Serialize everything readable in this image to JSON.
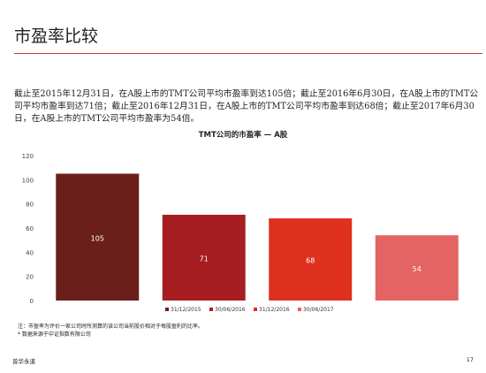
{
  "slide": {
    "title": "市盈率比较",
    "body": "截止至2015年12月31日，在A股上市的TMT公司平均市盈率到达105倍；截止至2016年6月30日，在A股上市的TMT公司平均市盈率到达71倍；截止至2016年12月31日，在A股上市的TMT公司平均市盈率到达68倍；截止至2017年6月30日，在A股上市的TMT公司平均市盈率为54倍。",
    "notes": [
      "注：市盈率为评价一家公司时所测算的该公司当前股价相对于每股盈利的比率。",
      "* 数据来源于中证指数有限公司"
    ],
    "footer_left": "普华永道",
    "page_number": "17"
  },
  "chart_data": {
    "type": "bar",
    "title": "TMT公司的市盈率 — A股",
    "categories": [
      "31/12/2015",
      "30/06/2016",
      "31/12/2016",
      "30/06/2017"
    ],
    "values": [
      105,
      71,
      68,
      54
    ],
    "colors": [
      "#6b1f1a",
      "#a61e22",
      "#e0301e",
      "#e36462"
    ],
    "ylim": [
      0,
      120
    ],
    "yticks": [
      0,
      20,
      40,
      60,
      80,
      100,
      120
    ],
    "grid": false,
    "legend_placement": "bottom"
  }
}
